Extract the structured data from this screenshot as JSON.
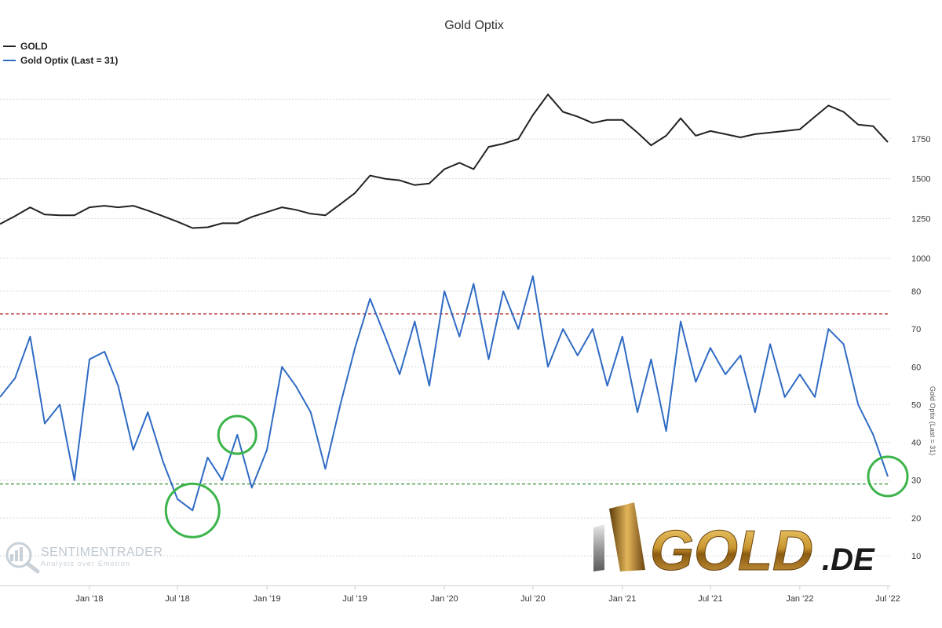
{
  "title": "Gold Optix",
  "legend": [
    {
      "label": "GOLD",
      "color": "#222222"
    },
    {
      "label": "Gold Optix (Last = 31)",
      "color": "#2f6bc4"
    }
  ],
  "watermark": {
    "name": "SENTIMENTRADER",
    "tagline": "Analysis over Emotion"
  },
  "brand": {
    "name": "GOLD",
    "suffix": ".DE"
  },
  "chart_data": [
    {
      "type": "line",
      "name": "GOLD",
      "x": [
        "2017-07",
        "2017-08",
        "2017-09",
        "2017-10",
        "2017-11",
        "2017-12",
        "2018-01",
        "2018-02",
        "2018-03",
        "2018-04",
        "2018-05",
        "2018-06",
        "2018-07",
        "2018-08",
        "2018-09",
        "2018-10",
        "2018-11",
        "2018-12",
        "2019-01",
        "2019-02",
        "2019-03",
        "2019-04",
        "2019-05",
        "2019-06",
        "2019-07",
        "2019-08",
        "2019-09",
        "2019-10",
        "2019-11",
        "2019-12",
        "2020-01",
        "2020-02",
        "2020-03",
        "2020-04",
        "2020-05",
        "2020-06",
        "2020-07",
        "2020-08",
        "2020-09",
        "2020-10",
        "2020-11",
        "2020-12",
        "2021-01",
        "2021-02",
        "2021-03",
        "2021-04",
        "2021-05",
        "2021-06",
        "2021-07",
        "2021-08",
        "2021-09",
        "2021-10",
        "2021-11",
        "2021-12",
        "2022-01",
        "2022-02",
        "2022-03",
        "2022-04",
        "2022-05",
        "2022-06",
        "2022-07"
      ],
      "values": [
        1215,
        1265,
        1320,
        1275,
        1270,
        1270,
        1320,
        1330,
        1320,
        1330,
        1300,
        1265,
        1230,
        1190,
        1195,
        1220,
        1220,
        1260,
        1290,
        1320,
        1305,
        1280,
        1270,
        1340,
        1410,
        1520,
        1500,
        1490,
        1460,
        1470,
        1560,
        1600,
        1560,
        1700,
        1720,
        1750,
        1900,
        2030,
        1920,
        1890,
        1850,
        1870,
        1870,
        1790,
        1710,
        1770,
        1880,
        1770,
        1800,
        1780,
        1760,
        1780,
        1790,
        1800,
        1810,
        1890,
        1960,
        1920,
        1840,
        1830,
        1730
      ],
      "ytick_labels": [
        "1000",
        "1250",
        "1500",
        "1750"
      ]
    },
    {
      "type": "line",
      "name": "Gold Optix (Last = 31)",
      "x": [
        "2017-07",
        "2017-08",
        "2017-09",
        "2017-10",
        "2017-11",
        "2017-12",
        "2018-01",
        "2018-02",
        "2018-03",
        "2018-04",
        "2018-05",
        "2018-06",
        "2018-07",
        "2018-08",
        "2018-09",
        "2018-10",
        "2018-11",
        "2018-12",
        "2019-01",
        "2019-02",
        "2019-03",
        "2019-04",
        "2019-05",
        "2019-06",
        "2019-07",
        "2019-08",
        "2019-09",
        "2019-10",
        "2019-11",
        "2019-12",
        "2020-01",
        "2020-02",
        "2020-03",
        "2020-04",
        "2020-05",
        "2020-06",
        "2020-07",
        "2020-08",
        "2020-09",
        "2020-10",
        "2020-11",
        "2020-12",
        "2021-01",
        "2021-02",
        "2021-03",
        "2021-04",
        "2021-05",
        "2021-06",
        "2021-07",
        "2021-08",
        "2021-09",
        "2021-10",
        "2021-11",
        "2021-12",
        "2022-01",
        "2022-02",
        "2022-03",
        "2022-04",
        "2022-05",
        "2022-06",
        "2022-07"
      ],
      "values": [
        52,
        57,
        68,
        45,
        50,
        30,
        62,
        64,
        55,
        38,
        48,
        35,
        25,
        22,
        36,
        30,
        42,
        28,
        38,
        60,
        55,
        48,
        33,
        50,
        65,
        78,
        68,
        58,
        72,
        55,
        80,
        68,
        82,
        62,
        80,
        70,
        84,
        60,
        70,
        63,
        70,
        55,
        68,
        48,
        62,
        43,
        72,
        56,
        65,
        58,
        63,
        48,
        66,
        52,
        58,
        52,
        70,
        66,
        50,
        42,
        31
      ],
      "ytick_labels": [
        "10",
        "20",
        "30",
        "40",
        "50",
        "60",
        "70",
        "80"
      ],
      "ylabel": "Gold Optix (Last = 31)",
      "reference_lines": [
        {
          "value": 74,
          "color": "#b22222"
        },
        {
          "value": 29,
          "color": "#2e8b2e"
        }
      ],
      "highlighted_lows": [
        "2018-08",
        "2018-11",
        "2022-07"
      ]
    }
  ],
  "x_tick_labels": [
    "Jan '18",
    "Jul '18",
    "Jan '19",
    "Jul '19",
    "Jan '20",
    "Jul '20",
    "Jan '21",
    "Jul '21",
    "Jan '22",
    "Jul '22"
  ],
  "colors": {
    "gold_line": "#222222",
    "optix_line": "#2f6bc4",
    "upper_band": "#b22222",
    "lower_band": "#2e8b2e",
    "circle": "#3cb44b"
  }
}
